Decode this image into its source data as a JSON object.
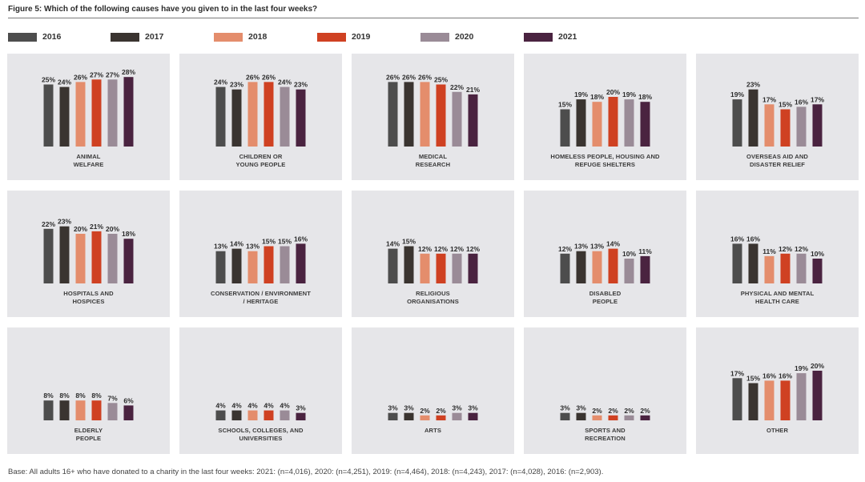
{
  "title": "Figure 5: Which of the following causes have you given to in the last four weeks?",
  "footnote": "Base: All adults 16+ who have donated to a charity in the last four weeks: 2021: (n=4,016), 2020: (n=4,251), 2019: (n=4,464), 2018:  (n=4,243), 2017: (n=4,028), 2016: (n=2,903).",
  "legend": [
    {
      "label": "2016",
      "color": "#4d4d4d"
    },
    {
      "label": "2017",
      "color": "#3a3430"
    },
    {
      "label": "2018",
      "color": "#e48d6c"
    },
    {
      "label": "2019",
      "color": "#cf4122"
    },
    {
      "label": "2020",
      "color": "#9a8b97"
    },
    {
      "label": "2021",
      "color": "#4a2340"
    }
  ],
  "chart_data": {
    "type": "bar",
    "series_names": [
      "2016",
      "2017",
      "2018",
      "2019",
      "2020",
      "2021"
    ],
    "unit": "%",
    "ylim": [
      0,
      28
    ],
    "panels": [
      {
        "category": "ANIMAL\nWELFARE",
        "values": [
          25,
          24,
          26,
          27,
          27,
          28
        ]
      },
      {
        "category": "CHILDREN OR\nYOUNG PEOPLE",
        "values": [
          24,
          23,
          26,
          26,
          24,
          23
        ]
      },
      {
        "category": "MEDICAL\nRESEARCH",
        "values": [
          26,
          26,
          26,
          25,
          22,
          21
        ]
      },
      {
        "category": "HOMELESS PEOPLE, HOUSING AND\nREFUGE SHELTERS",
        "values": [
          15,
          19,
          18,
          20,
          19,
          18
        ]
      },
      {
        "category": "OVERSEAS AID AND\nDISASTER RELIEF",
        "values": [
          19,
          23,
          17,
          15,
          16,
          17
        ]
      },
      {
        "category": "HOSPITALS AND\nHOSPICES",
        "values": [
          22,
          23,
          20,
          21,
          20,
          18
        ]
      },
      {
        "category": "CONSERVATION / ENVIRONMENT\n/ HERITAGE",
        "values": [
          13,
          14,
          13,
          15,
          15,
          16
        ]
      },
      {
        "category": "RELIGIOUS\nORGANISATIONS",
        "values": [
          14,
          15,
          12,
          12,
          12,
          12
        ]
      },
      {
        "category": "DISABLED\nPEOPLE",
        "values": [
          12,
          13,
          13,
          14,
          10,
          11
        ]
      },
      {
        "category": "PHYSICAL AND MENTAL\nHEALTH CARE",
        "values": [
          16,
          16,
          11,
          12,
          12,
          10
        ]
      },
      {
        "category": "ELDERLY\nPEOPLE",
        "values": [
          8,
          8,
          8,
          8,
          7,
          6
        ]
      },
      {
        "category": "SCHOOLS, COLLEGES, AND\nUNIVERSITIES",
        "values": [
          4,
          4,
          4,
          4,
          4,
          3
        ]
      },
      {
        "category": "ARTS",
        "values": [
          3,
          3,
          2,
          2,
          3,
          3
        ]
      },
      {
        "category": "SPORTS AND\nRECREATION",
        "values": [
          3,
          3,
          2,
          2,
          2,
          2
        ]
      },
      {
        "category": "OTHER",
        "values": [
          17,
          15,
          16,
          16,
          19,
          20
        ]
      }
    ]
  }
}
